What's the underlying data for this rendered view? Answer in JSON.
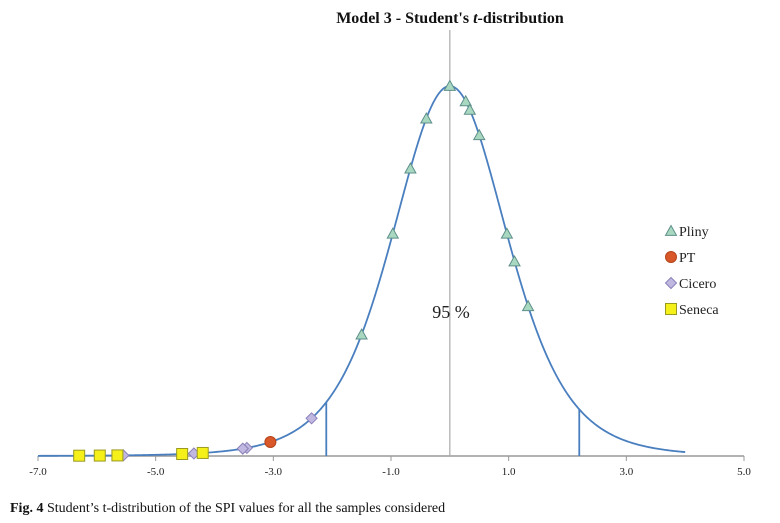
{
  "chart_data": {
    "type": "scatter",
    "title": "Model 3 - Student's t-distribution",
    "title_prefix": "Model 3 - Student's ",
    "title_italic": "t",
    "title_suffix": "-distribution",
    "xlim": [
      -7.0,
      5.0
    ],
    "x_ticks": [
      -7.0,
      -5.0,
      -3.0,
      -1.0,
      1.0,
      3.0,
      5.0
    ],
    "x_tick_labels": [
      "-7.0",
      "-5.0",
      "-3.0",
      "-1.0",
      "1.0",
      "3.0",
      "5.0"
    ],
    "curve": {
      "distribution": "student-t",
      "color": "#4a7fbf",
      "x_range": [
        -7.0,
        4.0
      ]
    },
    "critical_values": [
      -2.1,
      2.2
    ],
    "center_line_x": 0.0,
    "interval_label": "95 %",
    "legend_position": "right",
    "series": [
      {
        "name": "Pliny",
        "marker": "triangle",
        "color": "#a8d8c0",
        "stroke": "#5e8f8a",
        "x": [
          0.0,
          0.27,
          0.34,
          0.5,
          0.97,
          1.1,
          1.33,
          -0.4,
          -0.67,
          -0.97,
          -1.5
        ]
      },
      {
        "name": "PT",
        "marker": "circle",
        "color": "#d9582a",
        "stroke": "#b3431a",
        "x": [
          -3.05
        ]
      },
      {
        "name": "Cicero",
        "marker": "diamond",
        "color": "#c0b8e0",
        "stroke": "#8a80b8",
        "x": [
          -2.35,
          -3.45,
          -3.52,
          -4.35,
          -5.55
        ]
      },
      {
        "name": "Seneca",
        "marker": "square",
        "color": "#f5ef1a",
        "stroke": "#9a9a20",
        "x": [
          -6.3,
          -5.95,
          -5.65,
          -4.55,
          -4.2
        ]
      }
    ]
  },
  "caption": {
    "label": "Fig. 4",
    "text": "Student’s t-distribution of the SPI values for all the samples considered"
  }
}
